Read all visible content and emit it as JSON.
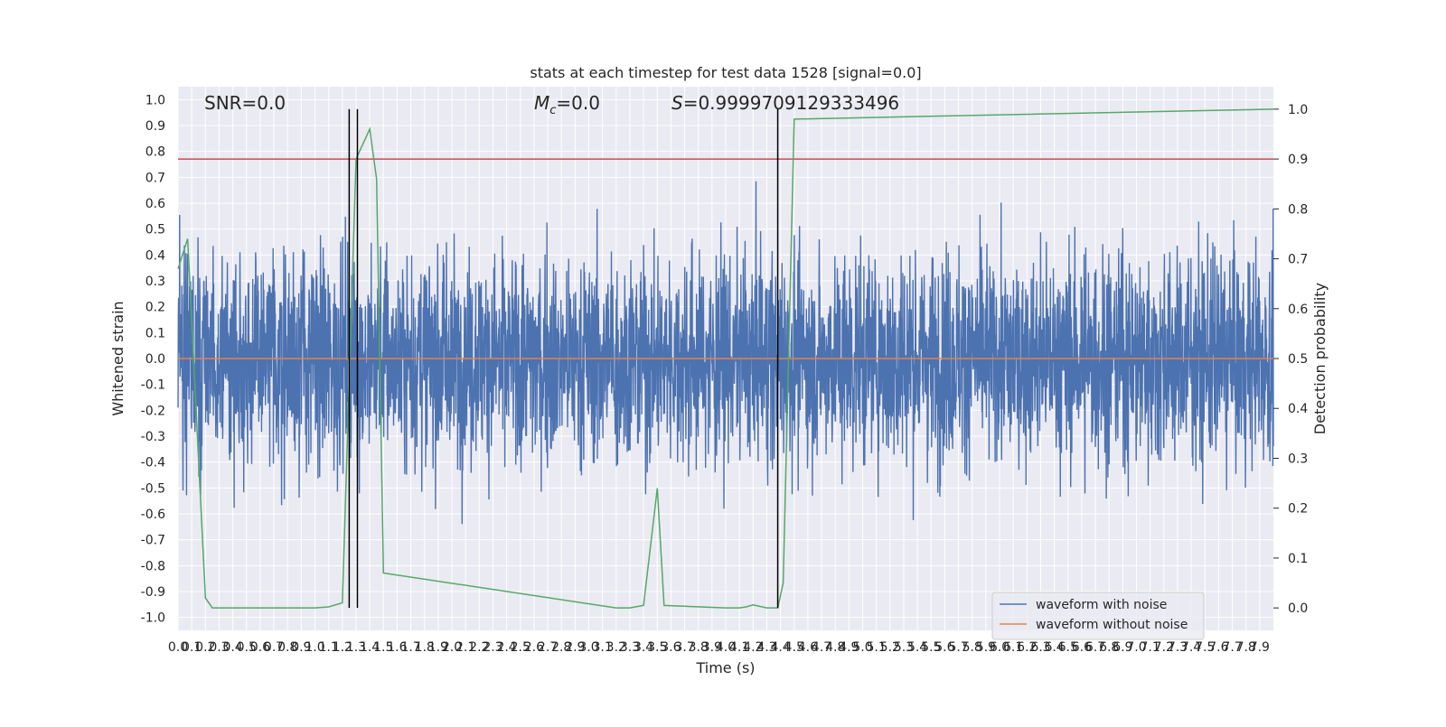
{
  "chart_data": {
    "type": "line",
    "title": "stats at each timestep for test data 1528 [signal=0.0]",
    "xlabel": "Time (s)",
    "ylabel_left": "Whitened strain",
    "ylabel_right": "Detection probability",
    "xlim": [
      0.0,
      8.0
    ],
    "ylim_left": [
      -1.05,
      1.05
    ],
    "ylim_right": [
      -0.045,
      1.045
    ],
    "x_ticks": [
      0.0,
      0.1,
      0.2,
      0.3,
      0.4,
      0.5,
      0.6,
      0.7,
      0.8,
      0.9,
      1.0,
      1.1,
      1.2,
      1.3,
      1.4,
      1.5,
      1.6,
      1.7,
      1.8,
      1.9,
      2.0,
      2.1,
      2.2,
      2.3,
      2.4,
      2.5,
      2.6,
      2.7,
      2.8,
      2.9,
      3.0,
      3.1,
      3.2,
      3.3,
      3.4,
      3.5,
      3.6,
      3.7,
      3.8,
      3.9,
      4.0,
      4.1,
      4.2,
      4.3,
      4.4,
      4.5,
      4.6,
      4.7,
      4.8,
      4.9,
      5.0,
      5.1,
      5.2,
      5.3,
      5.4,
      5.5,
      5.6,
      5.7,
      5.8,
      5.9,
      6.0,
      6.1,
      6.2,
      6.3,
      6.4,
      6.5,
      6.6,
      6.7,
      6.8,
      6.9,
      7.0,
      7.1,
      7.2,
      7.3,
      7.4,
      7.5,
      7.6,
      7.7,
      7.8,
      7.9
    ],
    "y_ticks_left": [
      -1.0,
      -0.9,
      -0.8,
      -0.7,
      -0.6,
      -0.5,
      -0.4,
      -0.3,
      -0.2,
      -0.1,
      0.0,
      0.1,
      0.2,
      0.3,
      0.4,
      0.5,
      0.6,
      0.7,
      0.8,
      0.9,
      1.0
    ],
    "y_ticks_right": [
      0.0,
      0.1,
      0.2,
      0.3,
      0.4,
      0.5,
      0.6,
      0.7,
      0.8,
      0.9,
      1.0
    ],
    "grid": true,
    "legend_position": "lower right",
    "series": [
      {
        "name": "waveform with noise",
        "color": "#4c72b0",
        "description": "whitened noisy strain, amplitude mostly within ±0.4, peaks reaching about 1.0 (max near 5.4 s) and troughs about -0.94"
      },
      {
        "name": "waveform without noise",
        "color": "#dd8452",
        "values": "constant 0.0 across 0-8 s"
      }
    ],
    "detection_probability": {
      "color": "#55a868",
      "x": [
        0.0,
        0.07,
        0.2,
        0.25,
        1.0,
        1.1,
        1.2,
        1.3,
        1.4,
        1.45,
        1.5,
        3.2,
        3.3,
        3.4,
        3.5,
        3.55,
        4.0,
        4.1,
        4.15,
        4.2,
        4.3,
        4.38,
        4.42,
        4.5,
        8.0
      ],
      "y": [
        0.68,
        0.74,
        0.02,
        0.0,
        0.0,
        0.002,
        0.01,
        0.9,
        0.96,
        0.86,
        0.07,
        0.0,
        0.0,
        0.005,
        0.24,
        0.005,
        0.0,
        0.0,
        0.002,
        0.006,
        0.0,
        0.0,
        0.05,
        0.98,
        1.0
      ]
    },
    "threshold": {
      "color": "#c44e52",
      "value": 0.9
    },
    "event_markers_x": [
      1.25,
      1.31,
      4.38
    ],
    "annotations": {
      "snr": "SNR=0.0",
      "mc_symbol": "M",
      "mc_subscript": "c",
      "mc_value": "=0.0",
      "s_symbol": "S",
      "s_value": "=0.9999709129333496"
    }
  }
}
